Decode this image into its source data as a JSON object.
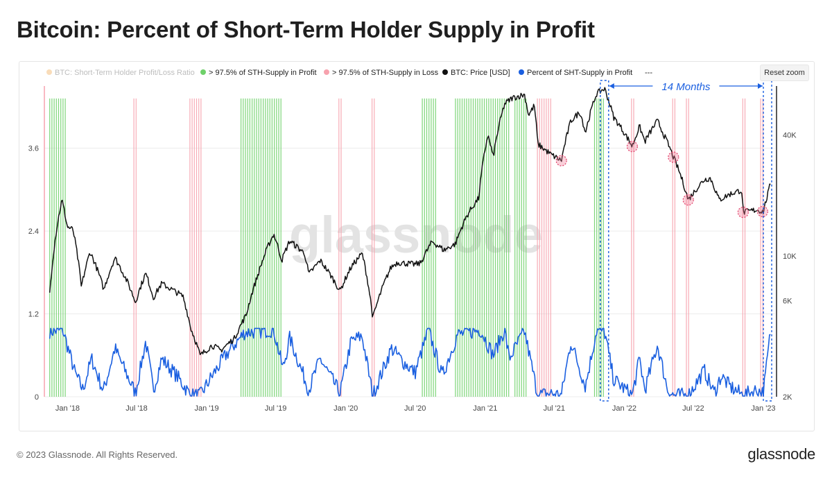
{
  "page": {
    "title": "Bitcoin: Percent of Short-Term Holder Supply in Profit",
    "copyright": "© 2023 Glassnode. All Rights Reserved.",
    "logo": "glassnode",
    "reset_zoom": "Reset zoom"
  },
  "chart_data": {
    "type": "line",
    "watermark": "glassnode",
    "legend_position": "top",
    "legend": [
      {
        "label": "BTC: Short-Term Holder Profit/Loss Ratio",
        "color": "#f5c48b",
        "disabled": true
      },
      {
        "label": "> 97.5% of STH-Supply in Profit",
        "color": "#6fd16a"
      },
      {
        "label": "> 97.5% of STH-Supply in Loss",
        "color": "#f7a2ae"
      },
      {
        "label": "BTC: Price [USD]",
        "color": "#111111"
      },
      {
        "label": "Percent of SHT-Supply in Profit",
        "color": "#1a5fe0"
      },
      {
        "label": "---",
        "color": "#555555"
      }
    ],
    "x_ticks": [
      "Jan '18",
      "Jul '18",
      "Jan '19",
      "Jul '19",
      "Jan '20",
      "Jul '20",
      "Jan '21",
      "Jul '21",
      "Jan '22",
      "Jul '22",
      "Jan '23"
    ],
    "x_range": [
      "2017-11-01",
      "2023-02-01"
    ],
    "y_left": {
      "ticks": [
        "0",
        "1.2",
        "2.4",
        "3.6"
      ],
      "range": [
        0,
        4.5
      ]
    },
    "y_right": {
      "ticks": [
        "2K",
        "6K",
        "10K",
        "40K"
      ],
      "scale": "log",
      "range": [
        2000,
        70000
      ]
    },
    "grid": true,
    "annotation": {
      "label": "14 Months",
      "from": "2021-11-10",
      "to": "2023-01-12",
      "color": "#1a5fe0"
    },
    "btc_price": [
      [
        "2017-11-15",
        6500
      ],
      [
        "2017-12-17",
        19000
      ],
      [
        "2017-12-31",
        14000
      ],
      [
        "2018-01-15",
        13500
      ],
      [
        "2018-02-06",
        7000
      ],
      [
        "2018-03-01",
        10500
      ],
      [
        "2018-04-06",
        6800
      ],
      [
        "2018-05-05",
        9800
      ],
      [
        "2018-06-28",
        5900
      ],
      [
        "2018-07-25",
        8200
      ],
      [
        "2018-08-14",
        6200
      ],
      [
        "2018-09-05",
        7300
      ],
      [
        "2018-10-31",
        6300
      ],
      [
        "2018-11-20",
        4400
      ],
      [
        "2018-12-15",
        3200
      ],
      [
        "2019-01-15",
        3600
      ],
      [
        "2019-02-07",
        3400
      ],
      [
        "2019-03-15",
        3900
      ],
      [
        "2019-04-15",
        5100
      ],
      [
        "2019-05-15",
        8000
      ],
      [
        "2019-06-26",
        12900
      ],
      [
        "2019-07-17",
        9500
      ],
      [
        "2019-08-07",
        11900
      ],
      [
        "2019-09-15",
        10300
      ],
      [
        "2019-09-26",
        8100
      ],
      [
        "2019-10-26",
        9500
      ],
      [
        "2019-12-17",
        6700
      ],
      [
        "2020-01-15",
        8800
      ],
      [
        "2020-02-13",
        10300
      ],
      [
        "2020-03-12",
        4900
      ],
      [
        "2020-04-29",
        8800
      ],
      [
        "2020-05-15",
        9300
      ],
      [
        "2020-06-30",
        9100
      ],
      [
        "2020-07-15",
        9200
      ],
      [
        "2020-08-15",
        11800
      ],
      [
        "2020-09-15",
        10700
      ],
      [
        "2020-10-15",
        11500
      ],
      [
        "2020-11-15",
        16000
      ],
      [
        "2020-12-15",
        19400
      ],
      [
        "2021-01-08",
        40000
      ],
      [
        "2021-01-22",
        31000
      ],
      [
        "2021-02-21",
        57000
      ],
      [
        "2021-03-13",
        61000
      ],
      [
        "2021-04-14",
        63500
      ],
      [
        "2021-04-25",
        50000
      ],
      [
        "2021-05-10",
        56000
      ],
      [
        "2021-05-19",
        36000
      ],
      [
        "2021-06-22",
        32000
      ],
      [
        "2021-07-20",
        29800
      ],
      [
        "2021-08-14",
        47000
      ],
      [
        "2021-09-07",
        52000
      ],
      [
        "2021-09-21",
        41000
      ],
      [
        "2021-10-20",
        64000
      ],
      [
        "2021-11-10",
        68000
      ],
      [
        "2021-12-04",
        49000
      ],
      [
        "2022-01-22",
        35000
      ],
      [
        "2022-02-10",
        44000
      ],
      [
        "2022-02-24",
        37000
      ],
      [
        "2022-03-29",
        47000
      ],
      [
        "2022-04-15",
        40000
      ],
      [
        "2022-05-10",
        31000
      ],
      [
        "2022-06-18",
        19000
      ],
      [
        "2022-07-30",
        24000
      ],
      [
        "2022-08-15",
        24400
      ],
      [
        "2022-09-07",
        19000
      ],
      [
        "2022-10-05",
        20300
      ],
      [
        "2022-11-05",
        21300
      ],
      [
        "2022-11-09",
        16500
      ],
      [
        "2022-12-15",
        17000
      ],
      [
        "2023-01-01",
        16600
      ],
      [
        "2023-01-15",
        21000
      ],
      [
        "2023-01-20",
        23000
      ]
    ],
    "percent_sth_in_profit": [
      [
        "2017-11-15",
        0.95
      ],
      [
        "2017-12-20",
        0.96
      ],
      [
        "2018-01-20",
        0.35
      ],
      [
        "2018-02-10",
        0.1
      ],
      [
        "2018-03-05",
        0.55
      ],
      [
        "2018-04-05",
        0.08
      ],
      [
        "2018-05-05",
        0.7
      ],
      [
        "2018-06-28",
        0.05
      ],
      [
        "2018-07-25",
        0.8
      ],
      [
        "2018-08-14",
        0.1
      ],
      [
        "2018-09-05",
        0.55
      ],
      [
        "2018-10-15",
        0.3
      ],
      [
        "2018-11-20",
        0.02
      ],
      [
        "2018-12-15",
        0.02
      ],
      [
        "2019-01-15",
        0.3
      ],
      [
        "2019-02-20",
        0.6
      ],
      [
        "2019-04-10",
        0.93
      ],
      [
        "2019-06-26",
        0.97
      ],
      [
        "2019-07-20",
        0.4
      ],
      [
        "2019-08-07",
        0.85
      ],
      [
        "2019-09-26",
        0.1
      ],
      [
        "2019-10-26",
        0.55
      ],
      [
        "2019-12-17",
        0.05
      ],
      [
        "2020-01-15",
        0.8
      ],
      [
        "2020-02-13",
        0.88
      ],
      [
        "2020-03-12",
        0.02
      ],
      [
        "2020-04-30",
        0.7
      ],
      [
        "2020-06-01",
        0.5
      ],
      [
        "2020-07-01",
        0.35
      ],
      [
        "2020-08-05",
        0.97
      ],
      [
        "2020-09-10",
        0.3
      ],
      [
        "2020-10-20",
        0.9
      ],
      [
        "2020-12-20",
        0.97
      ],
      [
        "2021-01-22",
        0.6
      ],
      [
        "2021-02-21",
        0.97
      ],
      [
        "2021-03-05",
        0.55
      ],
      [
        "2021-04-14",
        0.95
      ],
      [
        "2021-05-19",
        0.02
      ],
      [
        "2021-06-22",
        0.05
      ],
      [
        "2021-07-20",
        0.02
      ],
      [
        "2021-08-14",
        0.8
      ],
      [
        "2021-09-21",
        0.15
      ],
      [
        "2021-10-20",
        0.96
      ],
      [
        "2021-11-10",
        0.95
      ],
      [
        "2021-12-04",
        0.25
      ],
      [
        "2022-01-22",
        0.02
      ],
      [
        "2022-02-10",
        0.55
      ],
      [
        "2022-02-24",
        0.1
      ],
      [
        "2022-03-29",
        0.75
      ],
      [
        "2022-04-25",
        0.1
      ],
      [
        "2022-05-10",
        0.02
      ],
      [
        "2022-06-18",
        0.02
      ],
      [
        "2022-07-30",
        0.38
      ],
      [
        "2022-08-25",
        0.05
      ],
      [
        "2022-09-12",
        0.3
      ],
      [
        "2022-10-05",
        0.15
      ],
      [
        "2022-11-09",
        0.02
      ],
      [
        "2022-12-15",
        0.1
      ],
      [
        "2023-01-01",
        0.05
      ],
      [
        "2023-01-20",
        0.95
      ]
    ],
    "profit_signal_periods": [
      [
        "2017-11-15",
        "2017-12-28"
      ],
      [
        "2019-04-01",
        "2019-07-20"
      ],
      [
        "2020-07-20",
        "2020-08-25"
      ],
      [
        "2020-10-15",
        "2021-03-05"
      ],
      [
        "2021-03-20",
        "2021-04-20"
      ],
      [
        "2021-10-15",
        "2021-11-10"
      ]
    ],
    "loss_signal_periods": [
      [
        "2018-06-24",
        "2018-07-01"
      ],
      [
        "2018-11-18",
        "2018-12-20"
      ],
      [
        "2019-12-14",
        "2019-12-20"
      ],
      [
        "2020-03-10",
        "2020-03-16"
      ],
      [
        "2021-05-18",
        "2021-06-26"
      ],
      [
        "2022-01-20",
        "2022-01-26"
      ],
      [
        "2022-05-08",
        "2022-05-14"
      ],
      [
        "2022-06-13",
        "2022-06-20"
      ],
      [
        "2022-11-08",
        "2022-11-14"
      ],
      [
        "2022-12-25",
        "2022-12-31"
      ]
    ],
    "highlight_circles": [
      "2021-07-20",
      "2022-01-22",
      "2022-05-10",
      "2022-06-18",
      "2022-11-09",
      "2022-12-30"
    ]
  }
}
